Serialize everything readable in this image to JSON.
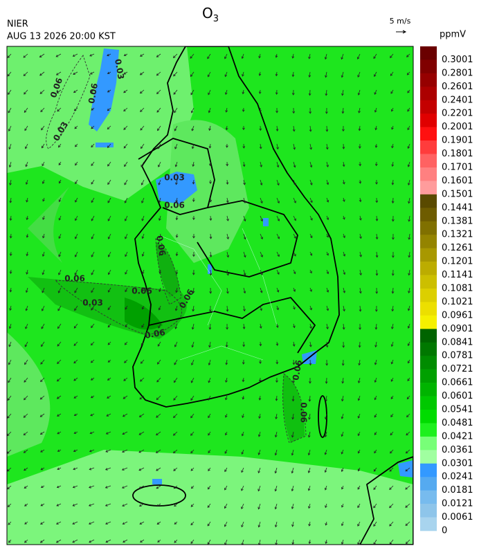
{
  "header": {
    "title": "O",
    "title_subscript": "3",
    "source": "NIER",
    "datetime": "AUG 13 2026 20:00 KST",
    "wind_scale": "5 m/s",
    "unit": "ppmV"
  },
  "colorbar": [
    {
      "label": "0.3001",
      "color": "#6a0000"
    },
    {
      "label": "0.2801",
      "color": "#800000"
    },
    {
      "label": "0.2601",
      "color": "#960000"
    },
    {
      "label": "0.2401",
      "color": "#ac0000"
    },
    {
      "label": "0.2201",
      "color": "#c40000"
    },
    {
      "label": "0.2001",
      "color": "#e00000"
    },
    {
      "label": "0.1901",
      "color": "#ff1010"
    },
    {
      "label": "0.1801",
      "color": "#ff3c3c"
    },
    {
      "label": "0.1701",
      "color": "#ff6262"
    },
    {
      "label": "0.1601",
      "color": "#ff8080"
    },
    {
      "label": "0.1501",
      "color": "#ff9c9c"
    },
    {
      "label": "0.1441",
      "color": "#5a4a00"
    },
    {
      "label": "0.1381",
      "color": "#6e5c00"
    },
    {
      "label": "0.1321",
      "color": "#807000"
    },
    {
      "label": "0.1261",
      "color": "#948400"
    },
    {
      "label": "0.1201",
      "color": "#a89800"
    },
    {
      "label": "0.1141",
      "color": "#bcac00"
    },
    {
      "label": "0.1081",
      "color": "#ccbf00"
    },
    {
      "label": "0.1021",
      "color": "#dccf00"
    },
    {
      "label": "0.0961",
      "color": "#ecdf00"
    },
    {
      "label": "0.0901",
      "color": "#f5f000"
    },
    {
      "label": "0.0841",
      "color": "#006400"
    },
    {
      "label": "0.0781",
      "color": "#007800"
    },
    {
      "label": "0.0721",
      "color": "#008c00"
    },
    {
      "label": "0.0661",
      "color": "#00a000"
    },
    {
      "label": "0.0601",
      "color": "#00b400"
    },
    {
      "label": "0.0541",
      "color": "#00c800"
    },
    {
      "label": "0.0481",
      "color": "#00dc00"
    },
    {
      "label": "0.0421",
      "color": "#1ef01e"
    },
    {
      "label": "0.0361",
      "color": "#78ff78"
    },
    {
      "label": "0.0301",
      "color": "#a0ffa0"
    },
    {
      "label": "0.0241",
      "color": "#3399ff"
    },
    {
      "label": "0.0181",
      "color": "#55aaf0"
    },
    {
      "label": "0.0121",
      "color": "#77bbee"
    },
    {
      "label": "0.0061",
      "color": "#8ec5ea"
    },
    {
      "label": "0",
      "color": "#a8d4ee"
    }
  ],
  "contour_labels": [
    "0.06",
    "0.06",
    "0.03",
    "0.03",
    "0.06",
    "0.03",
    "0.03",
    "0.06",
    "0.06",
    "0.06",
    "0.06",
    "0.06",
    "0.06",
    "0.06"
  ]
}
